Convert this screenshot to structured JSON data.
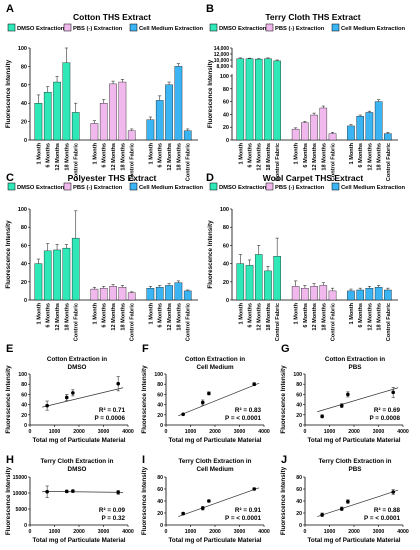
{
  "colors": {
    "dmso": "#2ee8b8",
    "pbs": "#f0b8ec",
    "cell": "#3ab4f2",
    "axis": "#000000",
    "error": "#333333",
    "line": "#333333"
  },
  "chart_data": [
    {
      "type": "bar",
      "panel": "A",
      "title": "Cotton THS Extract",
      "legend": [
        "DMSO  Extraction",
        "PBS (-) Extraction",
        "Cell Medium Extraction"
      ],
      "ylabel": "Fluorescence Intensity",
      "ylim": [
        0,
        100
      ],
      "yticks": [
        "0",
        "20",
        "40",
        "60",
        "80",
        "100"
      ],
      "categories": [
        "1 Month",
        "6 Months",
        "12 Months",
        "18 Months",
        "Control Fabric"
      ],
      "series": [
        {
          "name": "DMSO  Extraction",
          "values": [
            40,
            52,
            63,
            84,
            30
          ],
          "errors": [
            9,
            6,
            6,
            16,
            10
          ]
        },
        {
          "name": "PBS (-) Extraction",
          "values": [
            18,
            40,
            61,
            63,
            10
          ],
          "errors": [
            3,
            4,
            3,
            3,
            2
          ]
        },
        {
          "name": "Cell Medium Extraction",
          "values": [
            22,
            43,
            60,
            80,
            10
          ],
          "errors": [
            3,
            5,
            3,
            3,
            2
          ]
        }
      ]
    },
    {
      "type": "bar",
      "panel": "B",
      "title": "Terry Cloth THS Extract",
      "legend": [
        "DMSO  Extraction",
        "PBS (-) Extraction",
        "Cell Medium Extraction"
      ],
      "ylabel": "Fluorescence Intensity",
      "ylim": [
        0,
        100
      ],
      "yticks": [
        "0",
        "20",
        "40",
        "60",
        "80",
        "100"
      ],
      "yticks_upper": [
        "8,000",
        "10,000",
        "12,000",
        "14,000"
      ],
      "broken_axis": true,
      "categories": [
        "1 Month",
        "6 Months",
        "12 Months",
        "18 Months",
        "Control Fabric"
      ],
      "series": [
        {
          "name": "DMSO  Extraction",
          "values": [
            10400,
            10400,
            10300,
            10400,
            9700
          ],
          "errors": [
            300,
            200,
            200,
            300,
            300
          ]
        },
        {
          "name": "PBS (-) Extraction",
          "values": [
            17,
            27,
            39,
            50,
            10
          ],
          "errors": [
            2,
            2,
            3,
            3,
            2
          ]
        },
        {
          "name": "Cell Medium Extraction",
          "values": [
            22,
            37,
            43,
            60,
            10
          ],
          "errors": [
            2,
            2,
            2,
            3,
            2
          ]
        }
      ]
    },
    {
      "type": "bar",
      "panel": "C",
      "title": "Polyester THS Extract",
      "legend": [
        "DMSO  Extraction",
        "PBS (-) Extraction",
        "Cell Medium Extraction"
      ],
      "ylabel": "Fluorescence Intensity",
      "ylim": [
        0,
        100
      ],
      "yticks": [
        "0",
        "20",
        "40",
        "60",
        "80",
        "100"
      ],
      "categories": [
        "1 Month",
        "6 Months",
        "12 Months",
        "18 Months",
        "Control Fabric"
      ],
      "series": [
        {
          "name": "DMSO  Extraction",
          "values": [
            40,
            54,
            55,
            57,
            68
          ],
          "errors": [
            5,
            8,
            6,
            4,
            30
          ]
        },
        {
          "name": "PBS (-) Extraction",
          "values": [
            12,
            13,
            15,
            14,
            8
          ],
          "errors": [
            2,
            2,
            2,
            2,
            1
          ]
        },
        {
          "name": "Cell Medium Extraction",
          "values": [
            13,
            14,
            16,
            19,
            10
          ],
          "errors": [
            2,
            2,
            2,
            2,
            1
          ]
        }
      ]
    },
    {
      "type": "bar",
      "panel": "D",
      "title": "Wool Carpet THS Extract",
      "legend": [
        "DMSO  Extraction",
        "PBS (-) Extraction",
        "Cell Medium Extraction"
      ],
      "ylabel": "Fluorescence Intensity",
      "ylim": [
        0,
        100
      ],
      "yticks": [
        "0",
        "20",
        "40",
        "60",
        "80",
        "100"
      ],
      "categories": [
        "1 Month",
        "6 Months",
        "12 Months",
        "18 Months",
        "Control Fabric"
      ],
      "series": [
        {
          "name": "DMSO  Extraction",
          "values": [
            40,
            38,
            50,
            32,
            48
          ],
          "errors": [
            10,
            6,
            10,
            5,
            20
          ]
        },
        {
          "name": "PBS (-) Extraction",
          "values": [
            15,
            13,
            15,
            16,
            10
          ],
          "errors": [
            6,
            3,
            3,
            3,
            3
          ]
        },
        {
          "name": "Cell Medium Extraction",
          "values": [
            10,
            11,
            13,
            14,
            11
          ],
          "errors": [
            2,
            2,
            2,
            2,
            2
          ]
        }
      ]
    },
    {
      "type": "scatter",
      "panel": "E",
      "title": [
        "Cotton Extraction in",
        "DMSO"
      ],
      "xlabel": "Total mg of Particulate Material",
      "ylabel": "Fluorescence Intensity",
      "xlim": [
        0,
        4000
      ],
      "ylim": [
        0,
        100
      ],
      "xticks": [
        "0",
        "1000",
        "2000",
        "3000",
        "4000"
      ],
      "yticks": [
        "0",
        "20",
        "40",
        "60",
        "80",
        "100"
      ],
      "x": [
        700,
        1500,
        1750,
        3600
      ],
      "y": [
        38,
        54,
        63,
        81
      ],
      "errors": [
        9,
        6,
        6,
        14
      ],
      "fit": {
        "y0": 35,
        "y1": 73
      },
      "stats": [
        "R² = 0.71",
        "P = 0.0006"
      ]
    },
    {
      "type": "scatter",
      "panel": "F",
      "title": [
        "Cotton Extraction in",
        "Cell Medium"
      ],
      "xlabel": "Total mg of Particulate Material",
      "ylabel": "Fluorescence Intensity",
      "xlim": [
        0,
        4000
      ],
      "ylim": [
        0,
        100
      ],
      "xticks": [
        "0",
        "1000",
        "2000",
        "3000",
        "4000"
      ],
      "yticks": [
        "0",
        "20",
        "40",
        "60",
        "80",
        "100"
      ],
      "x": [
        700,
        1500,
        1750,
        3600
      ],
      "y": [
        21,
        44,
        62,
        80
      ],
      "errors": [
        2,
        5,
        3,
        3
      ],
      "fit": {
        "y0": 18,
        "y1": 82
      },
      "stats": [
        "R² = 0.83",
        "P = < 0.0001"
      ]
    },
    {
      "type": "scatter",
      "panel": "G",
      "title": [
        "Cotton Extraction in",
        "PBS"
      ],
      "xlabel": "Total mg of Particulate Material",
      "ylabel": "Fluorescence Intensity",
      "xlim": [
        0,
        4000
      ],
      "ylim": [
        0,
        100
      ],
      "xticks": [
        "0",
        "1000",
        "2000",
        "3000",
        "4000"
      ],
      "yticks": [
        "0",
        "20",
        "40",
        "60",
        "80",
        "100"
      ],
      "x": [
        700,
        1500,
        1750,
        3600
      ],
      "y": [
        17,
        38,
        60,
        64
      ],
      "errors": [
        3,
        4,
        5,
        10
      ],
      "fit": {
        "y0": 26,
        "y1": 73
      },
      "stats": [
        "R² = 0.69",
        "P = 0.0008"
      ]
    },
    {
      "type": "scatter",
      "panel": "H",
      "title": [
        "Terry Cloth Extraction in",
        "DMSO"
      ],
      "xlabel": "Total mg of Particulate Material",
      "ylabel": "Fluorescence Intensity",
      "xlim": [
        0,
        4000
      ],
      "ylim": [
        0,
        15000
      ],
      "xticks": [
        "0",
        "1000",
        "2000",
        "3000",
        "4000"
      ],
      "yticks": [
        "0",
        "5000",
        "10000",
        "15000"
      ],
      "x": [
        700,
        1500,
        1750,
        3600
      ],
      "y": [
        10400,
        10500,
        10600,
        10200
      ],
      "errors": [
        1800,
        400,
        400,
        600
      ],
      "fit": {
        "y0": 10500,
        "y1": 10200
      },
      "stats": [
        "R² = 0.09",
        "P = 0.32"
      ]
    },
    {
      "type": "scatter",
      "panel": "I",
      "title": [
        "Terry Cloth Extraction in",
        "Cell Medium"
      ],
      "xlabel": "Total mg of Particulate Material",
      "ylabel": "Fluorescence Intensity",
      "xlim": [
        0,
        4000
      ],
      "ylim": [
        0,
        80
      ],
      "xticks": [
        "0",
        "1000",
        "2000",
        "3000",
        "4000"
      ],
      "yticks": [
        "0",
        "20",
        "40",
        "60",
        "80"
      ],
      "x": [
        700,
        1500,
        1750,
        3600
      ],
      "y": [
        19,
        28,
        40,
        60
      ],
      "errors": [
        2,
        3,
        2,
        2
      ],
      "fit": {
        "y0": 14,
        "y1": 62
      },
      "stats": [
        "R² = 0.91",
        "P = < 0.0001"
      ]
    },
    {
      "type": "scatter",
      "panel": "J",
      "title": [
        "Terry Cloth Extraction in",
        "PBS"
      ],
      "xlabel": "Total mg of Particulate Material",
      "ylabel": "Fluorescence Intensity",
      "xlim": [
        0,
        4000
      ],
      "ylim": [
        0,
        80
      ],
      "xticks": [
        "0",
        "1000",
        "2000",
        "3000",
        "4000"
      ],
      "yticks": [
        "0",
        "20",
        "40",
        "60",
        "80"
      ],
      "x": [
        700,
        1500,
        1750,
        3600
      ],
      "y": [
        17,
        27,
        39,
        55
      ],
      "errors": [
        3,
        3,
        3,
        4
      ],
      "fit": {
        "y0": 14,
        "y1": 58
      },
      "stats": [
        "R² = 0.88",
        "P = < 0.0001"
      ]
    }
  ]
}
